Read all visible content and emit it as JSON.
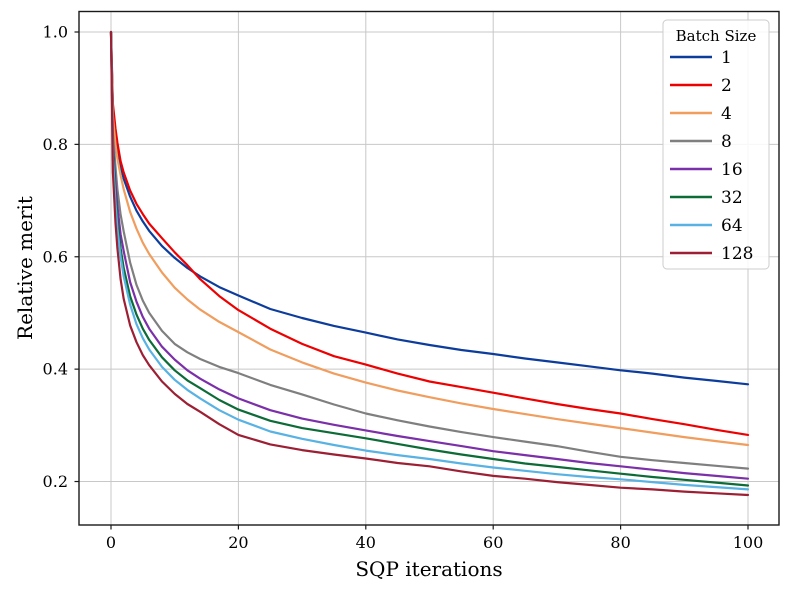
{
  "figure": {
    "background": "#ffffff",
    "grid_color": "#c8c8c8",
    "spine_color": "#1a1a1a"
  },
  "chart_data": {
    "type": "line",
    "title": "",
    "xlabel": "SQP iterations",
    "ylabel": "Relative merit",
    "xlim": [
      -5,
      105
    ],
    "ylim": [
      0.123,
      1.036
    ],
    "grid": true,
    "legend_title": "Batch Size",
    "legend_position": "upper right",
    "xticks": [
      0,
      20,
      40,
      60,
      80,
      100
    ],
    "xtick_labels": [
      "0",
      "20",
      "40",
      "60",
      "80",
      "100"
    ],
    "yticks": [
      0.2,
      0.4,
      0.6,
      0.8,
      1.0
    ],
    "ytick_labels": [
      "0.2",
      "0.4",
      "0.6",
      "0.8",
      "1.0"
    ],
    "x": [
      0,
      0.3,
      0.7,
      1,
      1.5,
      2,
      3,
      4,
      5,
      6,
      8,
      10,
      12,
      14,
      17,
      20,
      25,
      30,
      35,
      40,
      45,
      50,
      55,
      60,
      65,
      70,
      75,
      80,
      85,
      90,
      95,
      100
    ],
    "series": [
      {
        "name": "1",
        "color": "#0d3d9c",
        "values": [
          1.0,
          0.858,
          0.812,
          0.789,
          0.761,
          0.739,
          0.707,
          0.682,
          0.663,
          0.646,
          0.619,
          0.598,
          0.58,
          0.565,
          0.546,
          0.531,
          0.507,
          0.491,
          0.477,
          0.465,
          0.453,
          0.443,
          0.434,
          0.427,
          0.419,
          0.412,
          0.405,
          0.398,
          0.392,
          0.385,
          0.379,
          0.373
        ]
      },
      {
        "name": "2",
        "color": "#ee0000",
        "values": [
          1.0,
          0.872,
          0.828,
          0.803,
          0.77,
          0.75,
          0.718,
          0.694,
          0.676,
          0.659,
          0.633,
          0.608,
          0.585,
          0.56,
          0.53,
          0.505,
          0.472,
          0.445,
          0.423,
          0.408,
          0.392,
          0.378,
          0.368,
          0.358,
          0.348,
          0.338,
          0.329,
          0.321,
          0.311,
          0.302,
          0.292,
          0.283
        ]
      },
      {
        "name": "4",
        "color": "#f09d5e",
        "values": [
          1.0,
          0.85,
          0.8,
          0.775,
          0.745,
          0.72,
          0.68,
          0.65,
          0.625,
          0.605,
          0.572,
          0.545,
          0.524,
          0.506,
          0.484,
          0.466,
          0.435,
          0.412,
          0.392,
          0.376,
          0.362,
          0.35,
          0.339,
          0.329,
          0.32,
          0.311,
          0.303,
          0.295,
          0.287,
          0.279,
          0.272,
          0.265
        ]
      },
      {
        "name": "8",
        "color": "#7f7f7f",
        "values": [
          1.0,
          0.82,
          0.76,
          0.72,
          0.675,
          0.645,
          0.59,
          0.55,
          0.522,
          0.5,
          0.468,
          0.445,
          0.43,
          0.418,
          0.404,
          0.393,
          0.372,
          0.355,
          0.337,
          0.321,
          0.309,
          0.298,
          0.288,
          0.279,
          0.271,
          0.263,
          0.253,
          0.244,
          0.238,
          0.233,
          0.228,
          0.223
        ]
      },
      {
        "name": "16",
        "color": "#7b2fa8",
        "values": [
          1.0,
          0.8,
          0.73,
          0.69,
          0.64,
          0.61,
          0.555,
          0.52,
          0.493,
          0.472,
          0.44,
          0.417,
          0.398,
          0.383,
          0.364,
          0.348,
          0.327,
          0.312,
          0.301,
          0.291,
          0.281,
          0.272,
          0.263,
          0.254,
          0.247,
          0.24,
          0.233,
          0.227,
          0.221,
          0.215,
          0.21,
          0.205
        ]
      },
      {
        "name": "32",
        "color": "#0c6b37",
        "values": [
          1.0,
          0.79,
          0.71,
          0.665,
          0.615,
          0.58,
          0.53,
          0.497,
          0.472,
          0.452,
          0.421,
          0.398,
          0.38,
          0.366,
          0.345,
          0.328,
          0.308,
          0.295,
          0.286,
          0.277,
          0.267,
          0.257,
          0.248,
          0.24,
          0.232,
          0.226,
          0.22,
          0.214,
          0.208,
          0.203,
          0.198,
          0.193
        ]
      },
      {
        "name": "64",
        "color": "#58b2e3",
        "values": [
          1.0,
          0.775,
          0.695,
          0.65,
          0.6,
          0.565,
          0.515,
          0.48,
          0.455,
          0.435,
          0.404,
          0.381,
          0.363,
          0.348,
          0.327,
          0.31,
          0.289,
          0.276,
          0.265,
          0.255,
          0.247,
          0.24,
          0.232,
          0.225,
          0.219,
          0.213,
          0.208,
          0.204,
          0.199,
          0.194,
          0.19,
          0.186
        ]
      },
      {
        "name": "128",
        "color": "#9c1f33",
        "values": [
          1.0,
          0.75,
          0.66,
          0.615,
          0.56,
          0.525,
          0.478,
          0.448,
          0.425,
          0.407,
          0.378,
          0.356,
          0.338,
          0.324,
          0.302,
          0.283,
          0.266,
          0.256,
          0.248,
          0.241,
          0.233,
          0.227,
          0.218,
          0.21,
          0.205,
          0.199,
          0.194,
          0.189,
          0.186,
          0.182,
          0.179,
          0.176
        ]
      }
    ]
  }
}
